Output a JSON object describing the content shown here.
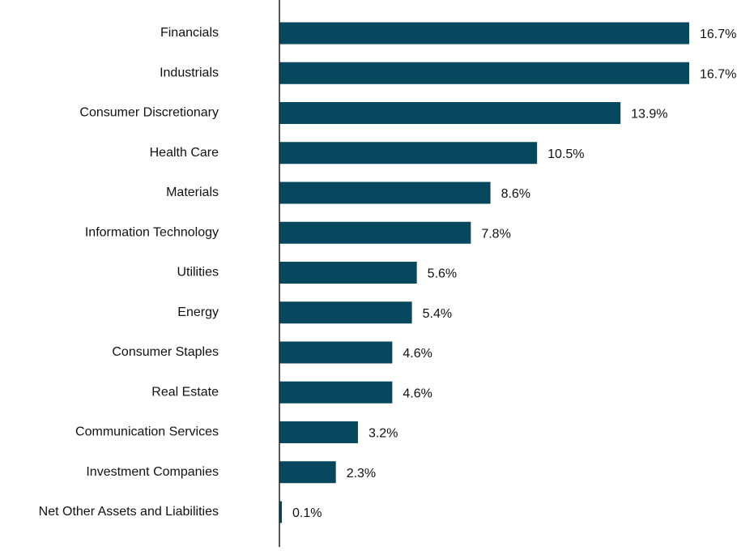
{
  "chart_data": {
    "type": "bar",
    "orientation": "horizontal",
    "title": "",
    "xlabel": "",
    "ylabel": "",
    "categories": [
      "Financials",
      "Industrials",
      "Consumer Discretionary",
      "Health Care",
      "Materials",
      "Information Technology",
      "Utilities",
      "Energy",
      "Consumer Staples",
      "Real Estate",
      "Communication Services",
      "Investment Companies",
      "Net Other Assets and Liabilities"
    ],
    "values": [
      16.7,
      16.7,
      13.9,
      10.5,
      8.6,
      7.8,
      5.6,
      5.4,
      4.6,
      4.6,
      3.2,
      2.3,
      0.1
    ],
    "value_labels": [
      "16.7%",
      "16.7%",
      "13.9%",
      "10.5%",
      "8.6%",
      "7.8%",
      "5.6%",
      "5.4%",
      "4.6%",
      "4.6%",
      "3.2%",
      "2.3%",
      "0.1%"
    ],
    "xlim": [
      0,
      16.7
    ],
    "grid": false,
    "legend": "none",
    "bar_color": "#07485e",
    "axis_color": "#222222"
  }
}
